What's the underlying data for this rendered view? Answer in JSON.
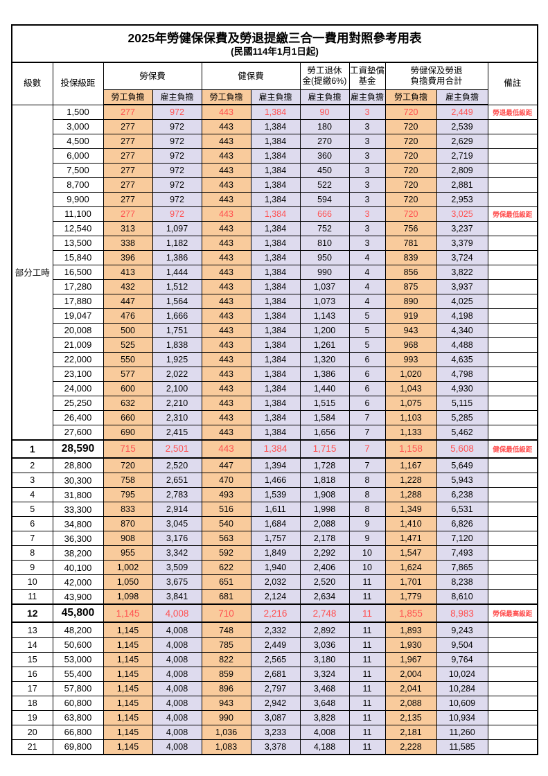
{
  "title": "2025年勞健保保費及勞退提繳三合一費用對照參考用表",
  "subtitle": "(民國114年1月1日起)",
  "colors": {
    "employee_bg": "#F9CB9C",
    "employer_bg": "#DEDBEE",
    "highlight_text": "#FF5050",
    "border": "#000000",
    "background": "#FFFFFF"
  },
  "header": {
    "level": "級數",
    "bracket": "投保級距",
    "labor_insurance": "勞保費",
    "health_insurance": "健保費",
    "pension_line1": "勞工退休",
    "pension_line2": "金(提繳6%)",
    "wage_fund_line1": "工資墊償",
    "wage_fund_line2": "基金",
    "total_line1": "勞健保及勞退",
    "total_line2": "負擔費用合計",
    "remark": "備註",
    "employee_share": "勞工負擔",
    "employer_share": "雇主負擔"
  },
  "part_time_label": "部分工時",
  "part_time_rowspan": 23,
  "rows": [
    {
      "level": "",
      "bracket": "1,500",
      "li_employee": "277",
      "li_employer": "972",
      "hi_employee": "443",
      "hi_employer": "1,384",
      "pension_employer": "90",
      "fund_employer": "3",
      "total_employee": "720",
      "total_employer": "2,449",
      "remark": "勞退最低級距",
      "highlight": true,
      "emphasis": false
    },
    {
      "level": "",
      "bracket": "3,000",
      "li_employee": "277",
      "li_employer": "972",
      "hi_employee": "443",
      "hi_employer": "1,384",
      "pension_employer": "180",
      "fund_employer": "3",
      "total_employee": "720",
      "total_employer": "2,539",
      "remark": "",
      "highlight": false,
      "emphasis": false
    },
    {
      "level": "",
      "bracket": "4,500",
      "li_employee": "277",
      "li_employer": "972",
      "hi_employee": "443",
      "hi_employer": "1,384",
      "pension_employer": "270",
      "fund_employer": "3",
      "total_employee": "720",
      "total_employer": "2,629",
      "remark": "",
      "highlight": false,
      "emphasis": false
    },
    {
      "level": "",
      "bracket": "6,000",
      "li_employee": "277",
      "li_employer": "972",
      "hi_employee": "443",
      "hi_employer": "1,384",
      "pension_employer": "360",
      "fund_employer": "3",
      "total_employee": "720",
      "total_employer": "2,719",
      "remark": "",
      "highlight": false,
      "emphasis": false
    },
    {
      "level": "",
      "bracket": "7,500",
      "li_employee": "277",
      "li_employer": "972",
      "hi_employee": "443",
      "hi_employer": "1,384",
      "pension_employer": "450",
      "fund_employer": "3",
      "total_employee": "720",
      "total_employer": "2,809",
      "remark": "",
      "highlight": false,
      "emphasis": false
    },
    {
      "level": "",
      "bracket": "8,700",
      "li_employee": "277",
      "li_employer": "972",
      "hi_employee": "443",
      "hi_employer": "1,384",
      "pension_employer": "522",
      "fund_employer": "3",
      "total_employee": "720",
      "total_employer": "2,881",
      "remark": "",
      "highlight": false,
      "emphasis": false
    },
    {
      "level": "",
      "bracket": "9,900",
      "li_employee": "277",
      "li_employer": "972",
      "hi_employee": "443",
      "hi_employer": "1,384",
      "pension_employer": "594",
      "fund_employer": "3",
      "total_employee": "720",
      "total_employer": "2,953",
      "remark": "",
      "highlight": false,
      "emphasis": false
    },
    {
      "level": "",
      "bracket": "11,100",
      "li_employee": "277",
      "li_employer": "972",
      "hi_employee": "443",
      "hi_employer": "1,384",
      "pension_employer": "666",
      "fund_employer": "3",
      "total_employee": "720",
      "total_employer": "3,025",
      "remark": "勞保最低級距",
      "highlight": true,
      "emphasis": false
    },
    {
      "level": "",
      "bracket": "12,540",
      "li_employee": "313",
      "li_employer": "1,097",
      "hi_employee": "443",
      "hi_employer": "1,384",
      "pension_employer": "752",
      "fund_employer": "3",
      "total_employee": "756",
      "total_employer": "3,237",
      "remark": "",
      "highlight": false,
      "emphasis": false
    },
    {
      "level": "",
      "bracket": "13,500",
      "li_employee": "338",
      "li_employer": "1,182",
      "hi_employee": "443",
      "hi_employer": "1,384",
      "pension_employer": "810",
      "fund_employer": "3",
      "total_employee": "781",
      "total_employer": "3,379",
      "remark": "",
      "highlight": false,
      "emphasis": false
    },
    {
      "level": "",
      "bracket": "15,840",
      "li_employee": "396",
      "li_employer": "1,386",
      "hi_employee": "443",
      "hi_employer": "1,384",
      "pension_employer": "950",
      "fund_employer": "4",
      "total_employee": "839",
      "total_employer": "3,724",
      "remark": "",
      "highlight": false,
      "emphasis": false
    },
    {
      "level": "",
      "bracket": "16,500",
      "li_employee": "413",
      "li_employer": "1,444",
      "hi_employee": "443",
      "hi_employer": "1,384",
      "pension_employer": "990",
      "fund_employer": "4",
      "total_employee": "856",
      "total_employer": "3,822",
      "remark": "",
      "highlight": false,
      "emphasis": false
    },
    {
      "level": "",
      "bracket": "17,280",
      "li_employee": "432",
      "li_employer": "1,512",
      "hi_employee": "443",
      "hi_employer": "1,384",
      "pension_employer": "1,037",
      "fund_employer": "4",
      "total_employee": "875",
      "total_employer": "3,937",
      "remark": "",
      "highlight": false,
      "emphasis": false
    },
    {
      "level": "",
      "bracket": "17,880",
      "li_employee": "447",
      "li_employer": "1,564",
      "hi_employee": "443",
      "hi_employer": "1,384",
      "pension_employer": "1,073",
      "fund_employer": "4",
      "total_employee": "890",
      "total_employer": "4,025",
      "remark": "",
      "highlight": false,
      "emphasis": false
    },
    {
      "level": "",
      "bracket": "19,047",
      "li_employee": "476",
      "li_employer": "1,666",
      "hi_employee": "443",
      "hi_employer": "1,384",
      "pension_employer": "1,143",
      "fund_employer": "5",
      "total_employee": "919",
      "total_employer": "4,198",
      "remark": "",
      "highlight": false,
      "emphasis": false
    },
    {
      "level": "",
      "bracket": "20,008",
      "li_employee": "500",
      "li_employer": "1,751",
      "hi_employee": "443",
      "hi_employer": "1,384",
      "pension_employer": "1,200",
      "fund_employer": "5",
      "total_employee": "943",
      "total_employer": "4,340",
      "remark": "",
      "highlight": false,
      "emphasis": false
    },
    {
      "level": "",
      "bracket": "21,009",
      "li_employee": "525",
      "li_employer": "1,838",
      "hi_employee": "443",
      "hi_employer": "1,384",
      "pension_employer": "1,261",
      "fund_employer": "5",
      "total_employee": "968",
      "total_employer": "4,488",
      "remark": "",
      "highlight": false,
      "emphasis": false
    },
    {
      "level": "",
      "bracket": "22,000",
      "li_employee": "550",
      "li_employer": "1,925",
      "hi_employee": "443",
      "hi_employer": "1,384",
      "pension_employer": "1,320",
      "fund_employer": "6",
      "total_employee": "993",
      "total_employer": "4,635",
      "remark": "",
      "highlight": false,
      "emphasis": false
    },
    {
      "level": "",
      "bracket": "23,100",
      "li_employee": "577",
      "li_employer": "2,022",
      "hi_employee": "443",
      "hi_employer": "1,384",
      "pension_employer": "1,386",
      "fund_employer": "6",
      "total_employee": "1,020",
      "total_employer": "4,798",
      "remark": "",
      "highlight": false,
      "emphasis": false
    },
    {
      "level": "",
      "bracket": "24,000",
      "li_employee": "600",
      "li_employer": "2,100",
      "hi_employee": "443",
      "hi_employer": "1,384",
      "pension_employer": "1,440",
      "fund_employer": "6",
      "total_employee": "1,043",
      "total_employer": "4,930",
      "remark": "",
      "highlight": false,
      "emphasis": false
    },
    {
      "level": "",
      "bracket": "25,250",
      "li_employee": "632",
      "li_employer": "2,210",
      "hi_employee": "443",
      "hi_employer": "1,384",
      "pension_employer": "1,515",
      "fund_employer": "6",
      "total_employee": "1,075",
      "total_employer": "5,115",
      "remark": "",
      "highlight": false,
      "emphasis": false
    },
    {
      "level": "",
      "bracket": "26,400",
      "li_employee": "660",
      "li_employer": "2,310",
      "hi_employee": "443",
      "hi_employer": "1,384",
      "pension_employer": "1,584",
      "fund_employer": "7",
      "total_employee": "1,103",
      "total_employer": "5,285",
      "remark": "",
      "highlight": false,
      "emphasis": false
    },
    {
      "level": "",
      "bracket": "27,600",
      "li_employee": "690",
      "li_employer": "2,415",
      "hi_employee": "443",
      "hi_employer": "1,384",
      "pension_employer": "1,656",
      "fund_employer": "7",
      "total_employee": "1,133",
      "total_employer": "5,462",
      "remark": "",
      "highlight": false,
      "emphasis": false
    },
    {
      "level": "1",
      "bracket": "28,590",
      "li_employee": "715",
      "li_employer": "2,501",
      "hi_employee": "443",
      "hi_employer": "1,384",
      "pension_employer": "1,715",
      "fund_employer": "7",
      "total_employee": "1,158",
      "total_employer": "5,608",
      "remark": "健保最低級距",
      "highlight": true,
      "emphasis": true
    },
    {
      "level": "2",
      "bracket": "28,800",
      "li_employee": "720",
      "li_employer": "2,520",
      "hi_employee": "447",
      "hi_employer": "1,394",
      "pension_employer": "1,728",
      "fund_employer": "7",
      "total_employee": "1,167",
      "total_employer": "5,649",
      "remark": "",
      "highlight": false,
      "emphasis": false
    },
    {
      "level": "3",
      "bracket": "30,300",
      "li_employee": "758",
      "li_employer": "2,651",
      "hi_employee": "470",
      "hi_employer": "1,466",
      "pension_employer": "1,818",
      "fund_employer": "8",
      "total_employee": "1,228",
      "total_employer": "5,943",
      "remark": "",
      "highlight": false,
      "emphasis": false
    },
    {
      "level": "4",
      "bracket": "31,800",
      "li_employee": "795",
      "li_employer": "2,783",
      "hi_employee": "493",
      "hi_employer": "1,539",
      "pension_employer": "1,908",
      "fund_employer": "8",
      "total_employee": "1,288",
      "total_employer": "6,238",
      "remark": "",
      "highlight": false,
      "emphasis": false
    },
    {
      "level": "5",
      "bracket": "33,300",
      "li_employee": "833",
      "li_employer": "2,914",
      "hi_employee": "516",
      "hi_employer": "1,611",
      "pension_employer": "1,998",
      "fund_employer": "8",
      "total_employee": "1,349",
      "total_employer": "6,531",
      "remark": "",
      "highlight": false,
      "emphasis": false
    },
    {
      "level": "6",
      "bracket": "34,800",
      "li_employee": "870",
      "li_employer": "3,045",
      "hi_employee": "540",
      "hi_employer": "1,684",
      "pension_employer": "2,088",
      "fund_employer": "9",
      "total_employee": "1,410",
      "total_employer": "6,826",
      "remark": "",
      "highlight": false,
      "emphasis": false
    },
    {
      "level": "7",
      "bracket": "36,300",
      "li_employee": "908",
      "li_employer": "3,176",
      "hi_employee": "563",
      "hi_employer": "1,757",
      "pension_employer": "2,178",
      "fund_employer": "9",
      "total_employee": "1,471",
      "total_employer": "7,120",
      "remark": "",
      "highlight": false,
      "emphasis": false
    },
    {
      "level": "8",
      "bracket": "38,200",
      "li_employee": "955",
      "li_employer": "3,342",
      "hi_employee": "592",
      "hi_employer": "1,849",
      "pension_employer": "2,292",
      "fund_employer": "10",
      "total_employee": "1,547",
      "total_employer": "7,493",
      "remark": "",
      "highlight": false,
      "emphasis": false
    },
    {
      "level": "9",
      "bracket": "40,100",
      "li_employee": "1,002",
      "li_employer": "3,509",
      "hi_employee": "622",
      "hi_employer": "1,940",
      "pension_employer": "2,406",
      "fund_employer": "10",
      "total_employee": "1,624",
      "total_employer": "7,865",
      "remark": "",
      "highlight": false,
      "emphasis": false
    },
    {
      "level": "10",
      "bracket": "42,000",
      "li_employee": "1,050",
      "li_employer": "3,675",
      "hi_employee": "651",
      "hi_employer": "2,032",
      "pension_employer": "2,520",
      "fund_employer": "11",
      "total_employee": "1,701",
      "total_employer": "8,238",
      "remark": "",
      "highlight": false,
      "emphasis": false
    },
    {
      "level": "11",
      "bracket": "43,900",
      "li_employee": "1,098",
      "li_employer": "3,841",
      "hi_employee": "681",
      "hi_employer": "2,124",
      "pension_employer": "2,634",
      "fund_employer": "11",
      "total_employee": "1,779",
      "total_employer": "8,610",
      "remark": "",
      "highlight": false,
      "emphasis": false
    },
    {
      "level": "12",
      "bracket": "45,800",
      "li_employee": "1,145",
      "li_employer": "4,008",
      "hi_employee": "710",
      "hi_employer": "2,216",
      "pension_employer": "2,748",
      "fund_employer": "11",
      "total_employee": "1,855",
      "total_employer": "8,983",
      "remark": "勞保最高級距",
      "highlight": true,
      "emphasis": true
    },
    {
      "level": "13",
      "bracket": "48,200",
      "li_employee": "1,145",
      "li_employer": "4,008",
      "hi_employee": "748",
      "hi_employer": "2,332",
      "pension_employer": "2,892",
      "fund_employer": "11",
      "total_employee": "1,893",
      "total_employer": "9,243",
      "remark": "",
      "highlight": false,
      "emphasis": false
    },
    {
      "level": "14",
      "bracket": "50,600",
      "li_employee": "1,145",
      "li_employer": "4,008",
      "hi_employee": "785",
      "hi_employer": "2,449",
      "pension_employer": "3,036",
      "fund_employer": "11",
      "total_employee": "1,930",
      "total_employer": "9,504",
      "remark": "",
      "highlight": false,
      "emphasis": false
    },
    {
      "level": "15",
      "bracket": "53,000",
      "li_employee": "1,145",
      "li_employer": "4,008",
      "hi_employee": "822",
      "hi_employer": "2,565",
      "pension_employer": "3,180",
      "fund_employer": "11",
      "total_employee": "1,967",
      "total_employer": "9,764",
      "remark": "",
      "highlight": false,
      "emphasis": false
    },
    {
      "level": "16",
      "bracket": "55,400",
      "li_employee": "1,145",
      "li_employer": "4,008",
      "hi_employee": "859",
      "hi_employer": "2,681",
      "pension_employer": "3,324",
      "fund_employer": "11",
      "total_employee": "2,004",
      "total_employer": "10,024",
      "remark": "",
      "highlight": false,
      "emphasis": false
    },
    {
      "level": "17",
      "bracket": "57,800",
      "li_employee": "1,145",
      "li_employer": "4,008",
      "hi_employee": "896",
      "hi_employer": "2,797",
      "pension_employer": "3,468",
      "fund_employer": "11",
      "total_employee": "2,041",
      "total_employer": "10,284",
      "remark": "",
      "highlight": false,
      "emphasis": false
    },
    {
      "level": "18",
      "bracket": "60,800",
      "li_employee": "1,145",
      "li_employer": "4,008",
      "hi_employee": "943",
      "hi_employer": "2,942",
      "pension_employer": "3,648",
      "fund_employer": "11",
      "total_employee": "2,088",
      "total_employer": "10,609",
      "remark": "",
      "highlight": false,
      "emphasis": false
    },
    {
      "level": "19",
      "bracket": "63,800",
      "li_employee": "1,145",
      "li_employer": "4,008",
      "hi_employee": "990",
      "hi_employer": "3,087",
      "pension_employer": "3,828",
      "fund_employer": "11",
      "total_employee": "2,135",
      "total_employer": "10,934",
      "remark": "",
      "highlight": false,
      "emphasis": false
    },
    {
      "level": "20",
      "bracket": "66,800",
      "li_employee": "1,145",
      "li_employer": "4,008",
      "hi_employee": "1,036",
      "hi_employer": "3,233",
      "pension_employer": "4,008",
      "fund_employer": "11",
      "total_employee": "2,181",
      "total_employer": "11,260",
      "remark": "",
      "highlight": false,
      "emphasis": false
    },
    {
      "level": "21",
      "bracket": "69,800",
      "li_employee": "1,145",
      "li_employer": "4,008",
      "hi_employee": "1,083",
      "hi_employer": "3,378",
      "pension_employer": "4,188",
      "fund_employer": "11",
      "total_employee": "2,228",
      "total_employer": "11,585",
      "remark": "",
      "highlight": false,
      "emphasis": false
    }
  ]
}
